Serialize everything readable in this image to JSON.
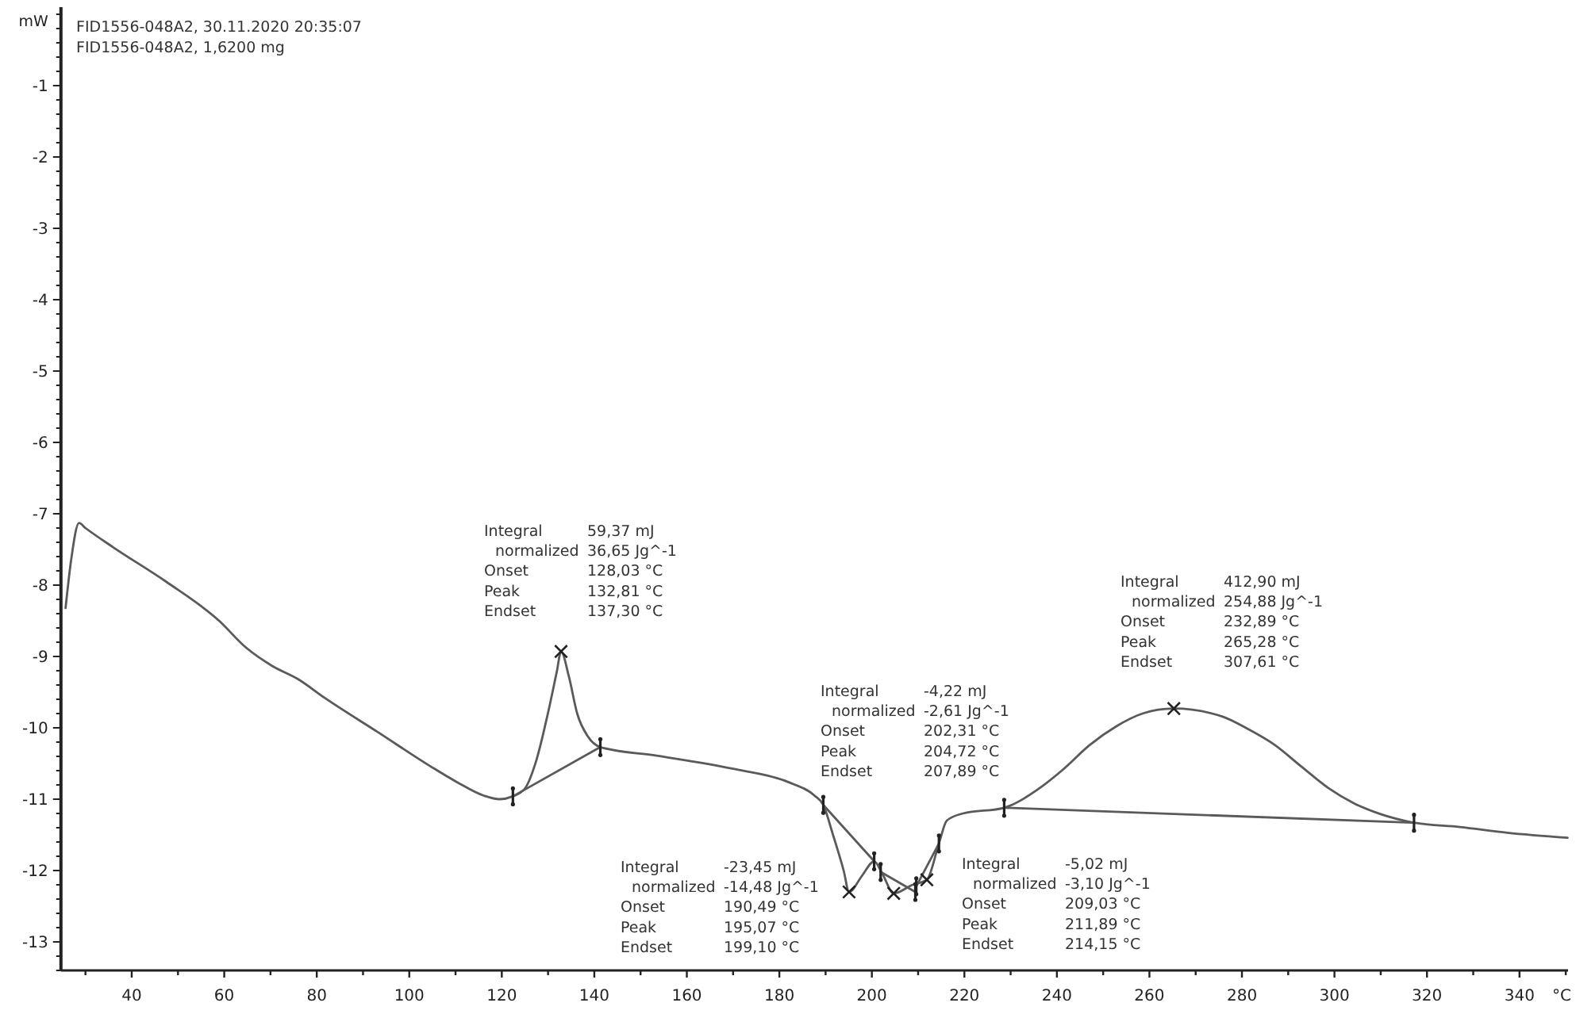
{
  "chart_data": {
    "type": "line",
    "title": "FID1556-048A2, 30.11.2020 20:35:07",
    "subtitle": "FID1556-048A2, 1,6200 mg",
    "xlabel": "°C",
    "ylabel": "mW",
    "xlim": [
      24.7,
      350.5
    ],
    "ylim": [
      -13.4,
      0.1
    ],
    "xticks": [
      {
        "value": 30,
        "label": null
      },
      40,
      {
        "value": 50,
        "label": null
      },
      60,
      {
        "value": 70,
        "label": null
      },
      80,
      {
        "value": 90,
        "label": null
      },
      100,
      {
        "value": 110,
        "label": null
      },
      120,
      {
        "value": 130,
        "label": null
      },
      140,
      {
        "value": 150,
        "label": null
      },
      160,
      {
        "value": 170,
        "label": null
      },
      180,
      {
        "value": 190,
        "label": null
      },
      200,
      {
        "value": 210,
        "label": null
      },
      220,
      {
        "value": 230,
        "label": null
      },
      240,
      {
        "value": 250,
        "label": null
      },
      260,
      {
        "value": 270,
        "label": null
      },
      280,
      {
        "value": 290,
        "label": null
      },
      300,
      {
        "value": 310,
        "label": null
      },
      320,
      {
        "value": 330,
        "label": null
      },
      340,
      {
        "value": 350,
        "label": null
      }
    ],
    "yticks": [
      {
        "value": 0,
        "label": null
      },
      {
        "value": -0.2,
        "label": null
      },
      {
        "value": -0.4,
        "label": null
      },
      {
        "value": -0.6,
        "label": null
      },
      {
        "value": -0.8,
        "label": null
      },
      -1,
      {
        "value": -1.2,
        "label": null
      },
      {
        "value": -1.4,
        "label": null
      },
      {
        "value": -1.6,
        "label": null
      },
      {
        "value": -1.8,
        "label": null
      },
      -2,
      {
        "value": -2.2,
        "label": null
      },
      {
        "value": -2.4,
        "label": null
      },
      {
        "value": -2.6,
        "label": null
      },
      {
        "value": -2.8,
        "label": null
      },
      -3,
      {
        "value": -3.2,
        "label": null
      },
      {
        "value": -3.4,
        "label": null
      },
      {
        "value": -3.6,
        "label": null
      },
      {
        "value": -3.8,
        "label": null
      },
      -4,
      {
        "value": -4.2,
        "label": null
      },
      {
        "value": -4.4,
        "label": null
      },
      {
        "value": -4.6,
        "label": null
      },
      {
        "value": -4.8,
        "label": null
      },
      -5,
      {
        "value": -5.2,
        "label": null
      },
      {
        "value": -5.4,
        "label": null
      },
      {
        "value": -5.6,
        "label": null
      },
      {
        "value": -5.8,
        "label": null
      },
      -6,
      {
        "value": -6.2,
        "label": null
      },
      {
        "value": -6.4,
        "label": null
      },
      {
        "value": -6.6,
        "label": null
      },
      {
        "value": -6.8,
        "label": null
      },
      -7,
      {
        "value": -7.2,
        "label": null
      },
      {
        "value": -7.4,
        "label": null
      },
      {
        "value": -7.6,
        "label": null
      },
      {
        "value": -7.8,
        "label": null
      },
      -8,
      {
        "value": -8.2,
        "label": null
      },
      {
        "value": -8.4,
        "label": null
      },
      {
        "value": -8.6,
        "label": null
      },
      {
        "value": -8.8,
        "label": null
      },
      -9,
      {
        "value": -9.2,
        "label": null
      },
      {
        "value": -9.4,
        "label": null
      },
      {
        "value": -9.6,
        "label": null
      },
      {
        "value": -9.8,
        "label": null
      },
      -10,
      {
        "value": -10.2,
        "label": null
      },
      {
        "value": -10.4,
        "label": null
      },
      {
        "value": -10.6,
        "label": null
      },
      {
        "value": -10.8,
        "label": null
      },
      -11,
      {
        "value": -11.2,
        "label": null
      },
      {
        "value": -11.4,
        "label": null
      },
      {
        "value": -11.6,
        "label": null
      },
      {
        "value": -11.8,
        "label": null
      },
      -12,
      {
        "value": -12.2,
        "label": null
      },
      {
        "value": -12.4,
        "label": null
      },
      {
        "value": -12.6,
        "label": null
      },
      {
        "value": -12.8,
        "label": null
      },
      -13,
      {
        "value": -13.2,
        "label": null
      },
      {
        "value": -13.4,
        "label": null
      }
    ],
    "series": [
      {
        "color": "#5a5a5a",
        "x": [
          25.7,
          26.9,
          28.6,
          30,
          36.0,
          47.4,
          58.9,
          64.6,
          70.3,
          76.0,
          81.7,
          93.2,
          104.6,
          110.3,
          116.1,
          119.5,
          122.4,
          125,
          127.4,
          130.2,
          131.9,
          132.81,
          134.5,
          136.3,
          138.6,
          141.3,
          153.5,
          170.5,
          181.9,
          187.6,
          189.5,
          191.6,
          193.9,
          195.07,
          197.9,
          200.5,
          202.3,
          204.72,
          208.8,
          211.89,
          214.5,
          216.2,
          219.7,
          228.6,
          235.7,
          241.4,
          247.1,
          252.8,
          258.5,
          265.28,
          275.7,
          281.4,
          287.1,
          292.8,
          298.6,
          304.3,
          310,
          317.2,
          327.1,
          337.4,
          350.4
        ],
        "values": [
          -8.32,
          -7.65,
          -7.13,
          -7.2,
          -7.47,
          -7.95,
          -8.5,
          -8.87,
          -9.13,
          -9.32,
          -9.58,
          -10.06,
          -10.54,
          -10.76,
          -10.95,
          -11.0,
          -10.96,
          -10.85,
          -10.47,
          -9.73,
          -9.21,
          -8.93,
          -9.28,
          -9.8,
          -10.12,
          -10.27,
          -10.39,
          -10.58,
          -10.76,
          -10.95,
          -11.08,
          -11.5,
          -12.0,
          -12.3,
          -12.07,
          -11.87,
          -12.05,
          -12.32,
          -12.2,
          -12.13,
          -11.62,
          -11.3,
          -11.2,
          -11.12,
          -10.87,
          -10.58,
          -10.24,
          -9.98,
          -9.8,
          -9.73,
          -9.84,
          -10.02,
          -10.24,
          -10.54,
          -10.84,
          -11.06,
          -11.21,
          -11.33,
          -11.39,
          -11.47,
          -11.54
        ]
      },
      {
        "type": "line",
        "color": "#5a5a5a",
        "x": [
          122.4,
          141.3
        ],
        "values": [
          -10.96,
          -10.27
        ]
      },
      {
        "type": "line",
        "color": "#5a5a5a",
        "x": [
          189.5,
          200.5
        ],
        "values": [
          -11.08,
          -11.87
        ]
      },
      {
        "type": "line",
        "color": "#5a5a5a",
        "x": [
          201.9,
          209.4
        ],
        "values": [
          -12.02,
          -12.3
        ]
      },
      {
        "type": "line",
        "color": "#5a5a5a",
        "x": [
          209.6,
          214.5
        ],
        "values": [
          -12.22,
          -11.62
        ]
      },
      {
        "type": "line",
        "color": "#5a5a5a",
        "x": [
          228.6,
          317.2
        ],
        "values": [
          -11.12,
          -11.33
        ]
      },
      {
        "type": "scatter",
        "marker": "cross",
        "color": "#222222",
        "x": [
          132.81,
          195.07,
          204.72,
          211.89,
          265.28
        ],
        "values": [
          -8.93,
          -12.3,
          -12.32,
          -12.13,
          -9.73
        ]
      }
    ],
    "annotations": [
      "Integral 59,37 mJ\nnormalized 36,65 Jg^-1\nOnset 128,03 °C\nPeak 132,81 °C\nEndset 137,30 °C",
      "Integral 412,90 mJ\nnormalized 254,88 Jg^-1\nOnset 232,89 °C\nPeak 265,28 °C\nEndset 307,61 °C",
      "Integral -4,22 mJ\nnormalized -2,61 Jg^-1\nOnset 202,31 °C\nPeak 204,72 °C\nEndset 207,89 °C",
      "Integral -23,45 mJ\nnormalized -14,48 Jg^-1\nOnset 190,49 °C\nPeak 195,07 °C\nEndset 199,10 °C",
      "Integral -5,02 mJ\nnormalized -3,10 Jg^-1\nOnset 209,03 °C\nPeak 211,89 °C\nEndset 214,15 °C"
    ]
  }
}
